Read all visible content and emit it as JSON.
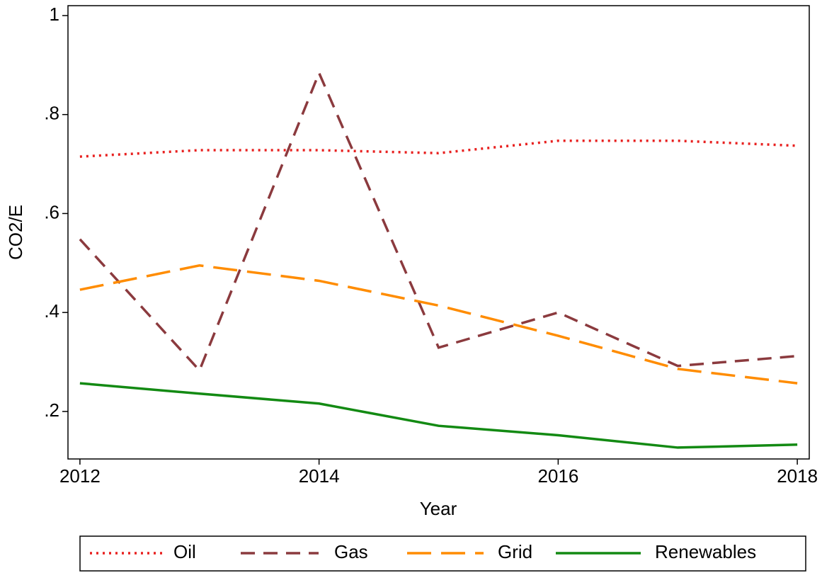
{
  "chart_data": {
    "type": "line",
    "x_label": "Year",
    "y_label": "CO2/E",
    "x": [
      2012,
      2013,
      2014,
      2015,
      2016,
      2017,
      2018
    ],
    "series": [
      {
        "name": "Oil",
        "color": "#e8201f",
        "style": "dotted",
        "values": [
          0.715,
          0.728,
          0.728,
          0.722,
          0.747,
          0.747,
          0.737
        ]
      },
      {
        "name": "Gas",
        "color": "#8b3a3e",
        "style": "dashed",
        "values": [
          0.548,
          0.283,
          0.884,
          0.329,
          0.4,
          0.292,
          0.312
        ]
      },
      {
        "name": "Grid",
        "color": "#ff8c00",
        "style": "longdash",
        "values": [
          0.446,
          0.495,
          0.464,
          0.414,
          0.353,
          0.286,
          0.257
        ]
      },
      {
        "name": "Renewables",
        "color": "#138a13",
        "style": "solid",
        "values": [
          0.257,
          0.236,
          0.216,
          0.171,
          0.152,
          0.127,
          0.133
        ]
      }
    ],
    "xlim": [
      2011.9,
      2018.1
    ],
    "xticks": [
      2012,
      2014,
      2016,
      2018
    ],
    "ylim": [
      0.104,
      1.02
    ],
    "yticks": [
      {
        "value": 0.2,
        "label": ".2"
      },
      {
        "value": 0.4,
        "label": ".4"
      },
      {
        "value": 0.6,
        "label": ".6"
      },
      {
        "value": 0.8,
        "label": ".8"
      },
      1
    ],
    "grid": false,
    "legend": "bottom"
  }
}
